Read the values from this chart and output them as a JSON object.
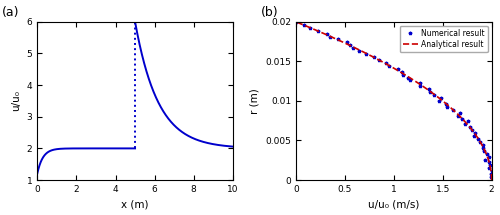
{
  "panel_a": {
    "label": "(a)",
    "xlabel": "x (m)",
    "ylabel": "u/u₀",
    "xlim": [
      0,
      10
    ],
    "ylim": [
      1,
      6
    ],
    "yticks": [
      1,
      2,
      3,
      4,
      5,
      6
    ],
    "xticks": [
      0,
      2,
      4,
      6,
      8,
      10
    ],
    "color": "#0000CC",
    "x_junction": 5.0,
    "inlet_val": 1.2,
    "plateau_val": 2.0,
    "peak_val": 6.0,
    "pre_decay": 3.5,
    "post_decay": 0.85
  },
  "panel_b": {
    "label": "(b)",
    "xlabel": "u/u₀ (m/s)",
    "ylabel": "r (m)",
    "xlim": [
      0,
      2
    ],
    "ylim": [
      0,
      0.02
    ],
    "xticks": [
      0,
      0.5,
      1.0,
      1.5,
      2.0
    ],
    "yticks": [
      0,
      0.005,
      0.01,
      0.015,
      0.02
    ],
    "ytick_labels": [
      "0",
      "0.005",
      "0.01",
      "0.015",
      "0.02"
    ],
    "R": 0.02,
    "u_max": 2.0,
    "numerical_color": "#0000CC",
    "analytical_color": "#CC0000",
    "legend_numerical": "Numerical result",
    "legend_analytical": "Analytical result",
    "n_numerical": 55,
    "n_analytical": 300
  },
  "figure_bg": "#ffffff"
}
